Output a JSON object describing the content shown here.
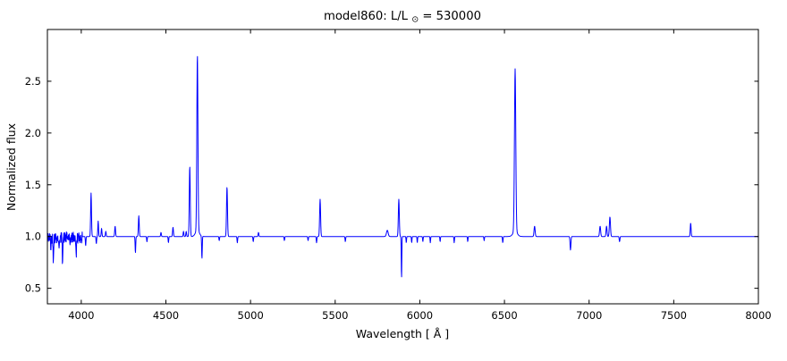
{
  "chart_data": {
    "type": "line",
    "title": "model860: L/L⊙ = 530000",
    "title_parts": {
      "prefix": "model860: L/L",
      "sub": "⊙",
      "suffix": " = 530000"
    },
    "xlabel": "Wavelength [ Å ]",
    "ylabel": "Normalized flux",
    "xlim": [
      3800,
      8000
    ],
    "ylim": [
      0.35,
      3.0
    ],
    "xtick_values": [
      4000,
      4500,
      5000,
      5500,
      6000,
      6500,
      7000,
      7500,
      8000
    ],
    "xtick_labels": [
      "4000",
      "4500",
      "5000",
      "5500",
      "6000",
      "6500",
      "7000",
      "7500",
      "8000"
    ],
    "ytick_values": [
      0.5,
      1.0,
      1.5,
      2.0,
      2.5
    ],
    "ytick_labels": [
      "0.5",
      "1.0",
      "1.5",
      "2.0",
      "2.5"
    ],
    "legend": "none",
    "grid": false,
    "colors": {
      "line": "#0000ff",
      "frame": "#000000",
      "background": "#ffffff"
    },
    "line_width": 1.0,
    "continuum": 1.0,
    "sample_step": 1.5,
    "noise": {
      "range": [
        3800,
        4008
      ],
      "amplitude": 0.055,
      "offset": -0.01,
      "seed": 42
    },
    "features": [
      {
        "center": 3820,
        "amp": -0.1,
        "sigma": 2.5
      },
      {
        "center": 3835,
        "amp": -0.2,
        "sigma": 2.5
      },
      {
        "center": 3868,
        "amp": -0.12,
        "sigma": 2.5
      },
      {
        "center": 3889,
        "amp": -0.22,
        "sigma": 2.5
      },
      {
        "center": 3933,
        "amp": -0.12,
        "sigma": 2.0
      },
      {
        "center": 3970,
        "amp": -0.2,
        "sigma": 2.5
      },
      {
        "center": 4026,
        "amp": -0.09,
        "sigma": 2.5
      },
      {
        "center": 4058,
        "amp": 0.42,
        "sigma": 3.5
      },
      {
        "center": 4089,
        "amp": -0.07,
        "sigma": 2.5
      },
      {
        "center": 4100,
        "amp": 0.15,
        "sigma": 3.0
      },
      {
        "center": 4120,
        "amp": 0.08,
        "sigma": 3.0
      },
      {
        "center": 4145,
        "amp": 0.05,
        "sigma": 3.0
      },
      {
        "center": 4200,
        "amp": 0.1,
        "sigma": 3.5
      },
      {
        "center": 4320,
        "amp": -0.16,
        "sigma": 2.5
      },
      {
        "center": 4340,
        "amp": 0.2,
        "sigma": 3.5
      },
      {
        "center": 4388,
        "amp": -0.05,
        "sigma": 2.5
      },
      {
        "center": 4471,
        "amp": 0.04,
        "sigma": 3.0
      },
      {
        "center": 4515,
        "amp": -0.06,
        "sigma": 2.5
      },
      {
        "center": 4542,
        "amp": 0.09,
        "sigma": 3.5
      },
      {
        "center": 4604,
        "amp": 0.05,
        "sigma": 3.0
      },
      {
        "center": 4620,
        "amp": 0.05,
        "sigma": 3.0
      },
      {
        "center": 4641,
        "amp": 0.68,
        "sigma": 4.0
      },
      {
        "center": 4686,
        "amp": 1.7,
        "sigma": 4.5
      },
      {
        "center": 4686,
        "amp": 0.06,
        "sigma": 16.0
      },
      {
        "center": 4713,
        "amp": -0.22,
        "sigma": 2.5
      },
      {
        "center": 4815,
        "amp": -0.04,
        "sigma": 2.5
      },
      {
        "center": 4861,
        "amp": 0.48,
        "sigma": 4.0
      },
      {
        "center": 4922,
        "amp": -0.06,
        "sigma": 2.5
      },
      {
        "center": 5016,
        "amp": -0.05,
        "sigma": 2.5
      },
      {
        "center": 5047,
        "amp": 0.04,
        "sigma": 3.0
      },
      {
        "center": 5200,
        "amp": -0.04,
        "sigma": 2.5
      },
      {
        "center": 5340,
        "amp": -0.04,
        "sigma": 2.5
      },
      {
        "center": 5390,
        "amp": -0.06,
        "sigma": 2.5
      },
      {
        "center": 5411,
        "amp": 0.36,
        "sigma": 4.0
      },
      {
        "center": 5560,
        "amp": -0.05,
        "sigma": 2.5
      },
      {
        "center": 5808,
        "amp": 0.06,
        "sigma": 7.0
      },
      {
        "center": 5876,
        "amp": 0.36,
        "sigma": 4.0
      },
      {
        "center": 5892,
        "amp": -0.41,
        "sigma": 2.2
      },
      {
        "center": 5920,
        "amp": -0.06,
        "sigma": 2.2
      },
      {
        "center": 5952,
        "amp": -0.06,
        "sigma": 2.2
      },
      {
        "center": 5985,
        "amp": -0.06,
        "sigma": 2.2
      },
      {
        "center": 6018,
        "amp": -0.05,
        "sigma": 2.2
      },
      {
        "center": 6062,
        "amp": -0.06,
        "sigma": 2.2
      },
      {
        "center": 6120,
        "amp": -0.05,
        "sigma": 2.2
      },
      {
        "center": 6203,
        "amp": -0.06,
        "sigma": 2.2
      },
      {
        "center": 6283,
        "amp": -0.05,
        "sigma": 2.2
      },
      {
        "center": 6380,
        "amp": -0.04,
        "sigma": 2.2
      },
      {
        "center": 6490,
        "amp": -0.06,
        "sigma": 2.5
      },
      {
        "center": 6563,
        "amp": 1.57,
        "sigma": 5.5
      },
      {
        "center": 6563,
        "amp": 0.05,
        "sigma": 18.0
      },
      {
        "center": 6678,
        "amp": 0.1,
        "sigma": 4.5
      },
      {
        "center": 6890,
        "amp": -0.13,
        "sigma": 3.5
      },
      {
        "center": 7065,
        "amp": 0.1,
        "sigma": 4.5
      },
      {
        "center": 7103,
        "amp": 0.1,
        "sigma": 4.0
      },
      {
        "center": 7123,
        "amp": 0.19,
        "sigma": 4.5
      },
      {
        "center": 7180,
        "amp": -0.05,
        "sigma": 3.0
      },
      {
        "center": 7600,
        "amp": 0.13,
        "sigma": 3.5
      }
    ]
  }
}
